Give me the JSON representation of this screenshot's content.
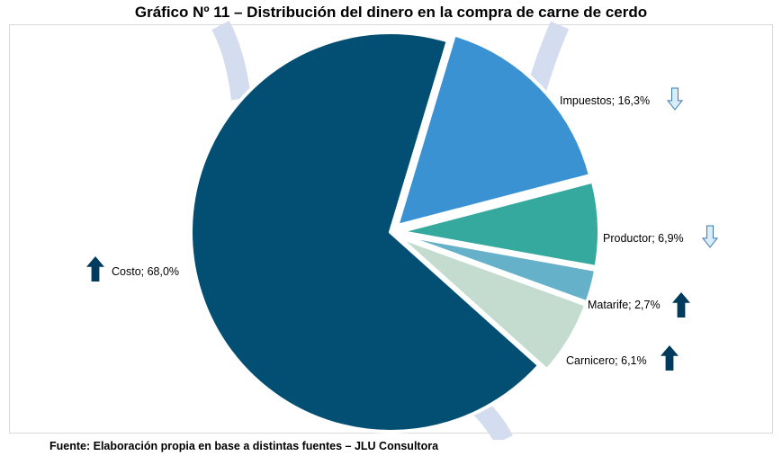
{
  "chart_data": {
    "type": "pie",
    "title": "Gráfico Nº 11 – Distribución del dinero en la compra de carne de cerdo",
    "source": "Fuente: Elaboración propia en base a distintas fuentes – JLU Consultora",
    "slices": [
      {
        "label": "Impuestos; 16,3%",
        "category": "Impuestos",
        "value": 16.3,
        "color": "#3a92d2",
        "trend": "down"
      },
      {
        "label": "Productor; 6,9%",
        "category": "Productor",
        "value": 6.9,
        "color": "#35a99e",
        "trend": "down"
      },
      {
        "label": "Matarife; 2,7%",
        "category": "Matarife",
        "value": 2.7,
        "color": "#66b1ca",
        "trend": "up"
      },
      {
        "label": "Carnicero; 6,1%",
        "category": "Carnicero",
        "value": 6.1,
        "color": "#c4dcd0",
        "trend": "up"
      },
      {
        "label": "Costo; 68,0%",
        "category": "Costo",
        "value": 68.0,
        "color": "#034e73",
        "trend": "up"
      }
    ],
    "arrow_colors": {
      "up": "#003a5c",
      "down": "#d9ecfa",
      "down_outline": "#3a78b0"
    },
    "background_arc_color": "#d4dcef"
  }
}
